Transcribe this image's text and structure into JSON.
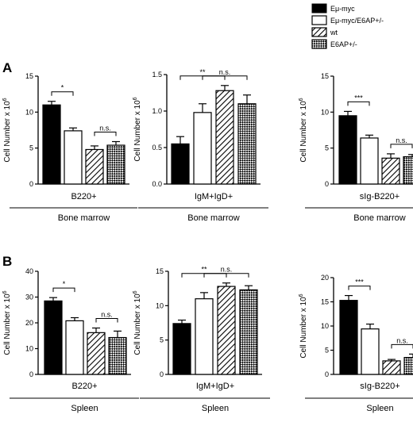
{
  "legend": [
    {
      "label": "Eμ-myc",
      "pattern": "solid"
    },
    {
      "label": "Eμ-myc/E6AP+/-",
      "pattern": "open"
    },
    {
      "label": "wt",
      "pattern": "hatch"
    },
    {
      "label": "E6AP+/-",
      "pattern": "checker"
    }
  ],
  "panels": [
    {
      "letter": "A",
      "group": "Bone marrow"
    },
    {
      "letter": "B",
      "group": "Spleen"
    }
  ],
  "ylabel": "Cell Number x 10",
  "ylabel_exponent": "6",
  "chart_data": [
    {
      "type": "bar",
      "panel": "A",
      "category": "B220+",
      "group": "Bone marrow",
      "series": [
        "Eμ-myc",
        "Eμ-myc/E6AP+/-",
        "wt",
        "E6AP+/-"
      ],
      "values": [
        11.0,
        7.4,
        4.8,
        5.4
      ],
      "errors": [
        0.5,
        0.4,
        0.5,
        0.5
      ],
      "ylim": [
        0,
        15
      ],
      "yticks": [
        "0",
        "5",
        "10",
        "15"
      ],
      "significance": [
        {
          "from": 0,
          "to": 1,
          "label": "*"
        },
        {
          "from": 2,
          "to": 3,
          "label": "n.s."
        }
      ]
    },
    {
      "type": "bar",
      "panel": "A",
      "category": "IgM+IgD+",
      "group": "Bone marrow",
      "series": [
        "Eμ-myc",
        "Eμ-myc/E6AP+/-",
        "wt",
        "E6AP+/-"
      ],
      "values": [
        0.55,
        0.98,
        1.28,
        1.1
      ],
      "errors": [
        0.1,
        0.12,
        0.07,
        0.12
      ],
      "ylim": [
        0,
        1.5
      ],
      "yticks": [
        "0.0",
        "0.5",
        "1.0",
        "1.5"
      ],
      "significance": [
        {
          "from": 0,
          "to": 2,
          "label": "**"
        },
        {
          "from": 1,
          "to": 3,
          "label": "n.s."
        }
      ]
    },
    {
      "type": "bar",
      "panel": "A",
      "category": "sIg-B220+",
      "group": "Bone marrow",
      "series": [
        "Eμ-myc",
        "Eμ-myc/E6AP+/-",
        "wt",
        "E6AP+/-"
      ],
      "values": [
        9.5,
        6.4,
        3.6,
        3.8
      ],
      "errors": [
        0.6,
        0.4,
        0.6,
        0.3
      ],
      "ylim": [
        0,
        15
      ],
      "yticks": [
        "0",
        "5",
        "10",
        "15"
      ],
      "significance": [
        {
          "from": 0,
          "to": 1,
          "label": "***"
        },
        {
          "from": 2,
          "to": 3,
          "label": "n.s."
        }
      ]
    },
    {
      "type": "bar",
      "panel": "B",
      "category": "B220+",
      "group": "Spleen",
      "series": [
        "Eμ-myc",
        "Eμ-myc/E6AP+/-",
        "wt",
        "E6AP+/-"
      ],
      "values": [
        28.5,
        20.8,
        16.2,
        14.3
      ],
      "errors": [
        1.3,
        1.2,
        1.8,
        2.5
      ],
      "ylim": [
        0,
        40
      ],
      "yticks": [
        "0",
        "10",
        "20",
        "30",
        "40"
      ],
      "significance": [
        {
          "from": 0,
          "to": 1,
          "label": "*"
        },
        {
          "from": 2,
          "to": 3,
          "label": "n.s."
        }
      ]
    },
    {
      "type": "bar",
      "panel": "B",
      "category": "IgM+IgD+",
      "group": "Spleen",
      "series": [
        "Eμ-myc",
        "Eμ-myc/E6AP+/-",
        "wt",
        "E6AP+/-"
      ],
      "values": [
        7.4,
        11.0,
        12.8,
        12.3
      ],
      "errors": [
        0.5,
        0.9,
        0.5,
        0.6
      ],
      "ylim": [
        0,
        15
      ],
      "yticks": [
        "0",
        "5",
        "10",
        "15"
      ],
      "significance": [
        {
          "from": 0,
          "to": 2,
          "label": "**"
        },
        {
          "from": 1,
          "to": 3,
          "label": "n.s."
        }
      ]
    },
    {
      "type": "bar",
      "panel": "B",
      "category": "sIg-B220+",
      "group": "Spleen",
      "series": [
        "Eμ-myc",
        "Eμ-myc/E6AP+/-",
        "wt",
        "E6AP+/-"
      ],
      "values": [
        15.3,
        9.4,
        2.8,
        3.5
      ],
      "errors": [
        1.0,
        1.0,
        0.3,
        0.7
      ],
      "ylim": [
        0,
        20
      ],
      "yticks": [
        "0",
        "5",
        "10",
        "15",
        "20"
      ],
      "significance": [
        {
          "from": 0,
          "to": 1,
          "label": "***"
        },
        {
          "from": 2,
          "to": 3,
          "label": "n.s."
        }
      ]
    }
  ]
}
